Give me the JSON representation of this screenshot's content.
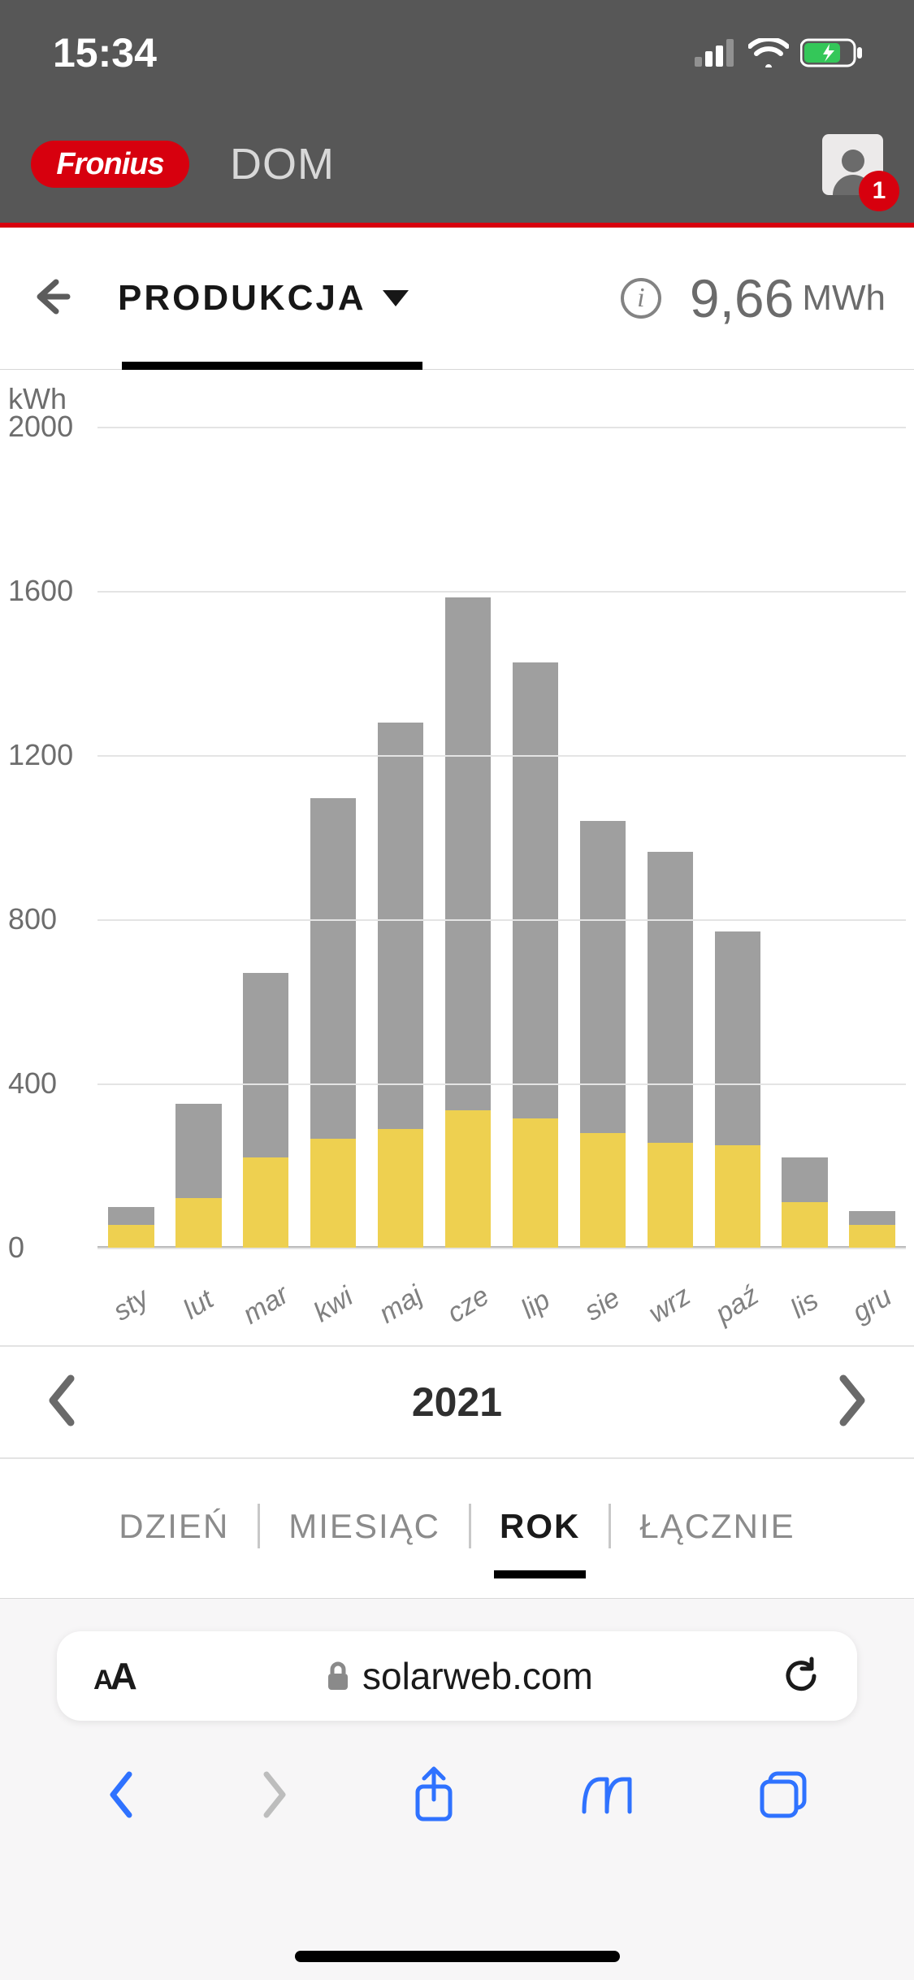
{
  "statusbar": {
    "time": "15:34"
  },
  "header": {
    "brand": "Fronius",
    "system_name": "DOM",
    "notification_count": "1"
  },
  "summary": {
    "tab_label": "PRODUKCJA",
    "total_value": "9,66",
    "total_unit": "MWh"
  },
  "chart": {
    "type": "bar-stacked",
    "y_unit": "kWh",
    "ylim": [
      0,
      2000
    ],
    "ytick_step": 400,
    "y_ticks": [
      "0",
      "400",
      "800",
      "1200",
      "1600",
      "2000"
    ],
    "grid_color": "#e4e4e4",
    "background_color": "#ffffff",
    "bar_colors": {
      "top": "#9f9f9f",
      "bottom": "#eed050"
    },
    "label_color": "#808080",
    "label_fontsize": 34,
    "tick_color": "#6d6d6d",
    "tick_fontsize": 36,
    "bar_width": 0.68,
    "categories": [
      "sty",
      "lut",
      "mar",
      "kwi",
      "maj",
      "cze",
      "lip",
      "sie",
      "wrz",
      "paź",
      "lis",
      "gru"
    ],
    "series_bottom": [
      55,
      120,
      220,
      265,
      290,
      335,
      315,
      280,
      255,
      250,
      110,
      55
    ],
    "series_top": [
      45,
      230,
      450,
      830,
      990,
      1250,
      1110,
      760,
      710,
      520,
      110,
      35
    ]
  },
  "year_nav": {
    "year": "2021"
  },
  "period_tabs": {
    "items": [
      "DZIEŃ",
      "MIESIĄC",
      "ROK",
      "ŁĄCZNIE"
    ],
    "active_index": 2
  },
  "browser": {
    "domain": "solarweb.com"
  },
  "colors": {
    "header_bg": "#575757",
    "accent_red": "#d7000e",
    "safari_blue": "#2f72ff"
  }
}
